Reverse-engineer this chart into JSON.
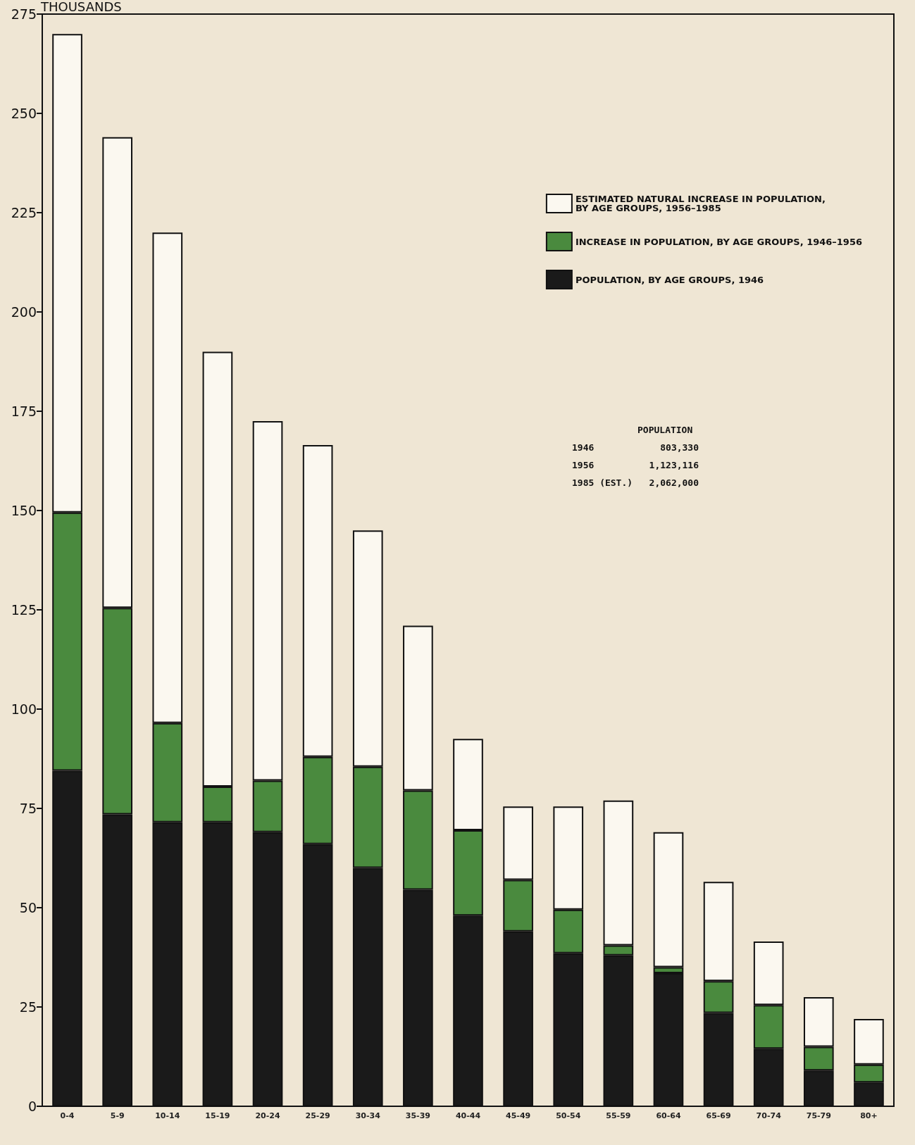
{
  "chart_data": {
    "type": "bar",
    "ylabel": "THOUSANDS",
    "categories": [
      "0-4",
      "5-9",
      "10-14",
      "15-19",
      "20-24",
      "25-29",
      "30-34",
      "35-39",
      "40-44",
      "45-49",
      "50-54",
      "55-59",
      "60-64",
      "65-69",
      "70-74",
      "75-79",
      "80+"
    ],
    "stacked": true,
    "series": [
      {
        "name": "POPULATION, BY AGE GROUPS, 1946",
        "color": "#1a1a1a",
        "values": [
          84.5,
          73.5,
          71.5,
          71.5,
          69,
          66,
          60,
          54.5,
          48,
          44,
          38.5,
          38,
          33.5,
          23.5,
          14.5,
          9,
          6
        ]
      },
      {
        "name": "INCREASE IN POPULATION, BY AGE GROUPS, 1946–1956",
        "color": "#4a8a3e",
        "values": [
          65,
          52,
          25,
          9,
          13,
          22,
          25.5,
          25,
          21.5,
          13,
          11,
          2.5,
          1.5,
          8,
          11,
          6,
          4.5
        ]
      },
      {
        "name": "ESTIMATED NATURAL INCREASE IN POPULATION,\nBY AGE GROUPS, 1956–1985",
        "color": "#fbf8f0",
        "values": [
          120.5,
          118.5,
          123.5,
          109.5,
          90.5,
          78.5,
          59.5,
          41.5,
          23,
          18.5,
          26,
          36.5,
          34,
          25,
          16,
          12.5,
          11.5
        ]
      }
    ],
    "ylim": [
      0,
      275
    ],
    "yticks": [
      0,
      25,
      50,
      75,
      100,
      125,
      150,
      175,
      200,
      225,
      250,
      275
    ],
    "grid": false,
    "legend": "top right",
    "annotations": [
      "POPULATION",
      "1946            803,330",
      "1956          1,123,116",
      "1985 (EST.)   2,062,000"
    ]
  }
}
